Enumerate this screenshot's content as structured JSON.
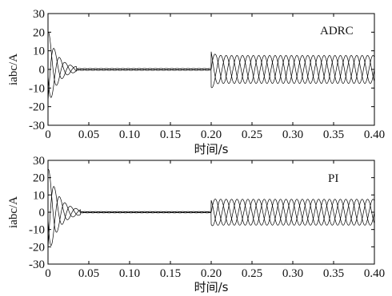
{
  "chart_data": [
    {
      "type": "line",
      "annotation": "ADRC",
      "ylabel": "iabc/A",
      "xlabel": "时间/s",
      "xlim": [
        0,
        0.4
      ],
      "ylim": [
        -30,
        30
      ],
      "xticks": [
        0,
        0.05,
        0.1,
        0.15,
        0.2,
        0.25,
        0.3,
        0.35,
        0.4
      ],
      "xtick_labels": [
        "0",
        "0.05",
        "0.10",
        "0.15",
        "0.20",
        "0.25",
        "0.30",
        "0.35",
        "0.40"
      ],
      "yticks": [
        30,
        20,
        10,
        0,
        -10,
        -20,
        -30
      ],
      "ytick_labels": [
        "30",
        "20",
        "10",
        "0",
        "-10",
        "-20",
        "-30"
      ],
      "phases": [
        "a",
        "b",
        "c"
      ],
      "signal": {
        "startup_peak": 21,
        "startup_end": 0.035,
        "idle_amplitude": 0.5,
        "load_step_time": 0.2,
        "load_transient_peak": 11,
        "steady_amplitude": 7.5
      }
    },
    {
      "type": "line",
      "annotation": "PI",
      "ylabel": "iabc/A",
      "xlabel": "时间/s",
      "xlim": [
        0,
        0.4
      ],
      "ylim": [
        -30,
        30
      ],
      "xticks": [
        0,
        0.05,
        0.1,
        0.15,
        0.2,
        0.25,
        0.3,
        0.35,
        0.4
      ],
      "xtick_labels": [
        "0",
        "0.05",
        "0.10",
        "0.15",
        "0.20",
        "0.25",
        "0.30",
        "0.35",
        "0.40"
      ],
      "yticks": [
        30,
        20,
        10,
        0,
        -10,
        -20,
        -30
      ],
      "ytick_labels": [
        "30",
        "20",
        "10",
        "0",
        "-10",
        "-20",
        "-30"
      ],
      "phases": [
        "a",
        "b",
        "c"
      ],
      "signal": {
        "startup_peak": 26,
        "startup_end": 0.04,
        "idle_amplitude": 0.4,
        "load_step_time": 0.2,
        "load_transient_peak": 8,
        "steady_amplitude": 7.5
      }
    }
  ]
}
